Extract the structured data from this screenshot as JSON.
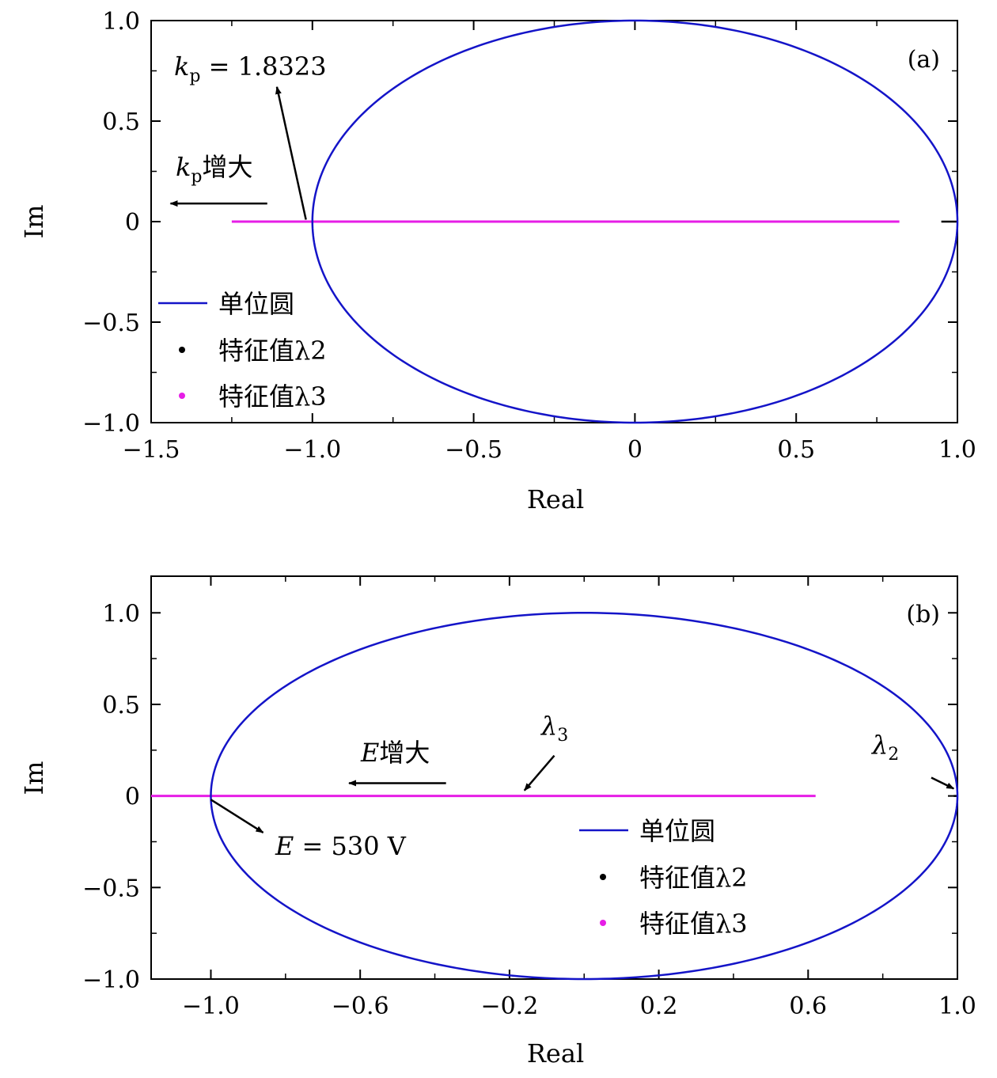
{
  "colors": {
    "unit_circle": "#1414c8",
    "lambda2": "#000000",
    "lambda3": "#e61ee6",
    "axis": "#000000"
  },
  "chart_data": [
    {
      "type": "line",
      "panel_tag": "(a)",
      "xlabel": "Real",
      "ylabel": "Im",
      "xlim": [
        -1.5,
        1.0
      ],
      "ylim": [
        -1.0,
        1.0
      ],
      "xticks": [
        -1.5,
        -1.0,
        -0.5,
        0,
        0.5,
        1.0
      ],
      "xtick_labels": [
        "−1.5",
        "−1.0",
        "−0.5",
        "0",
        "0.5",
        "1.0"
      ],
      "xminor": [
        -1.25,
        -0.75,
        -0.25,
        0.25,
        0.75
      ],
      "yticks": [
        -1.0,
        -0.5,
        0,
        0.5,
        1.0
      ],
      "ytick_labels": [
        "−1.0",
        "−0.5",
        "0",
        "0.5",
        "1.0"
      ],
      "series": [
        {
          "name": "单位圆",
          "kind": "unit_circle"
        },
        {
          "name": "特征值λ2",
          "kind": "points",
          "sub": "2",
          "x": [
            0.95,
            1.0
          ],
          "y": [
            0,
            0
          ]
        },
        {
          "name": "特征值λ3",
          "kind": "points",
          "sub": "3",
          "x": [
            -1.25,
            0.82
          ],
          "y": [
            0,
            0
          ]
        }
      ],
      "legend": "bottom-left",
      "annotations": [
        {
          "text_main": "k",
          "text_sub": "p",
          "text_rest": " = 1.8323",
          "arrow_from": [
            -1.02,
            0.01
          ],
          "arrow_to": [
            -1.11,
            0.67
          ]
        },
        {
          "text_main": "k",
          "text_sub": "p",
          "text_rest": "增大",
          "arrow_from": [
            -1.14,
            0.09
          ],
          "arrow_to": [
            -1.44,
            0.09
          ]
        }
      ]
    },
    {
      "type": "line",
      "panel_tag": "(b)",
      "xlabel": "Real",
      "ylabel": "Im",
      "xlim": [
        -1.16,
        1.0
      ],
      "ylim": [
        -1.0,
        1.2
      ],
      "xticks": [
        -1.0,
        -0.6,
        -0.2,
        0.2,
        0.6,
        1.0
      ],
      "xtick_labels": [
        "−1.0",
        "−0.6",
        "−0.2",
        "0.2",
        "0.6",
        "1.0"
      ],
      "xminor": [
        -0.8,
        -0.4,
        0,
        0.4,
        0.8
      ],
      "yticks": [
        -1.0,
        -0.5,
        0,
        0.5,
        1.0
      ],
      "ytick_labels": [
        "−1.0",
        "−0.5",
        "0",
        "0.5",
        "1.0"
      ],
      "series": [
        {
          "name": "单位圆",
          "kind": "unit_circle"
        },
        {
          "name": "特征值λ2",
          "kind": "points",
          "sub": "2",
          "x": [
            0.99,
            1.0
          ],
          "y": [
            0,
            0
          ]
        },
        {
          "name": "特征值λ3",
          "kind": "points",
          "sub": "3",
          "x": [
            -1.16,
            0.62
          ],
          "y": [
            0,
            0
          ]
        }
      ],
      "legend": "bottom-right",
      "annotations": [
        {
          "text_main": "E",
          "text_sub": "",
          "text_rest": " = 530 V",
          "arrow_from": [
            -1.0,
            -0.02
          ],
          "arrow_to": [
            -0.86,
            -0.2
          ]
        },
        {
          "text_main": "E",
          "text_sub": "",
          "text_rest": "增大",
          "arrow_from": [
            -0.37,
            0.07
          ],
          "arrow_to": [
            -0.63,
            0.07
          ]
        },
        {
          "text_main": "λ",
          "text_sub": "3",
          "text_rest": "",
          "arrow_from": [
            -0.08,
            0.22
          ],
          "arrow_to": [
            -0.16,
            0.03
          ]
        },
        {
          "text_main": "λ",
          "text_sub": "2",
          "text_rest": "",
          "arrow_from": [
            0.93,
            0.1
          ],
          "arrow_to": [
            0.99,
            0.04
          ]
        }
      ]
    }
  ]
}
